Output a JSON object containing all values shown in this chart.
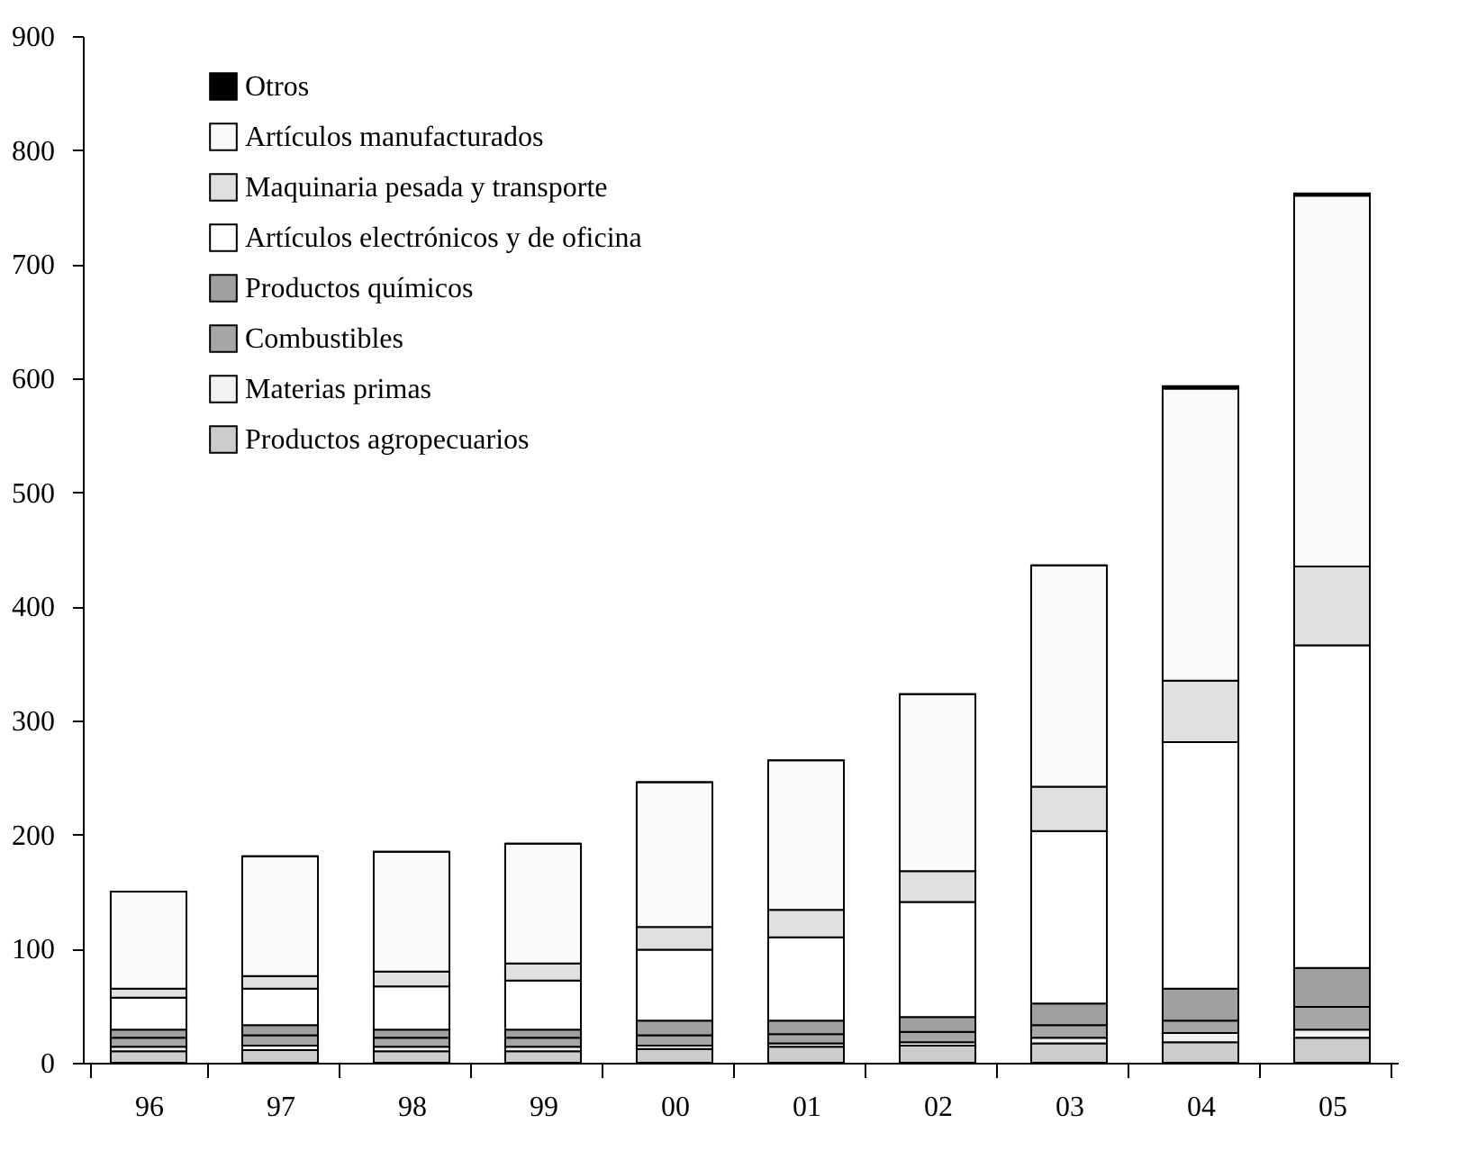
{
  "chart_data": {
    "type": "bar",
    "stacked": true,
    "legend": "top left",
    "categories": [
      "96",
      "97",
      "98",
      "99",
      "00",
      "01",
      "02",
      "03",
      "04",
      "05"
    ],
    "ylim": [
      0,
      900
    ],
    "yticks": [
      0,
      100,
      200,
      300,
      400,
      500,
      600,
      700,
      800,
      900
    ],
    "series": [
      {
        "name": "Productos agropecuarios",
        "color": "#cccccc",
        "values": [
          10,
          11,
          10,
          10,
          12,
          14,
          15,
          17,
          18,
          22
        ]
      },
      {
        "name": "Materias primas",
        "color": "#f2f2f2",
        "values": [
          4,
          4,
          4,
          4,
          3,
          3,
          3,
          5,
          8,
          7
        ]
      },
      {
        "name": "Combustibles",
        "color": "#a6a6a6",
        "values": [
          8,
          9,
          8,
          8,
          9,
          8,
          9,
          11,
          11,
          20
        ]
      },
      {
        "name": "Productos químicos",
        "color": "#a0a0a0",
        "values": [
          7,
          9,
          7,
          7,
          13,
          12,
          13,
          19,
          28,
          34
        ]
      },
      {
        "name": "Artículos electrónicos y de oficina",
        "color": "#ffffff",
        "values": [
          28,
          32,
          38,
          43,
          62,
          73,
          101,
          151,
          216,
          283
        ]
      },
      {
        "name": "Maquinaria pesada y transporte",
        "color": "#e0e0e0",
        "values": [
          8,
          11,
          13,
          15,
          20,
          24,
          27,
          39,
          54,
          69
        ]
      },
      {
        "name": "Artículos manufacturados",
        "color": "#fafafa",
        "values": [
          85,
          105,
          105,
          105,
          127,
          131,
          155,
          194,
          256,
          325
        ]
      },
      {
        "name": "Otros",
        "color": "#000000",
        "values": [
          0,
          0,
          0,
          0,
          0,
          0,
          0,
          0,
          2,
          2
        ]
      }
    ]
  }
}
